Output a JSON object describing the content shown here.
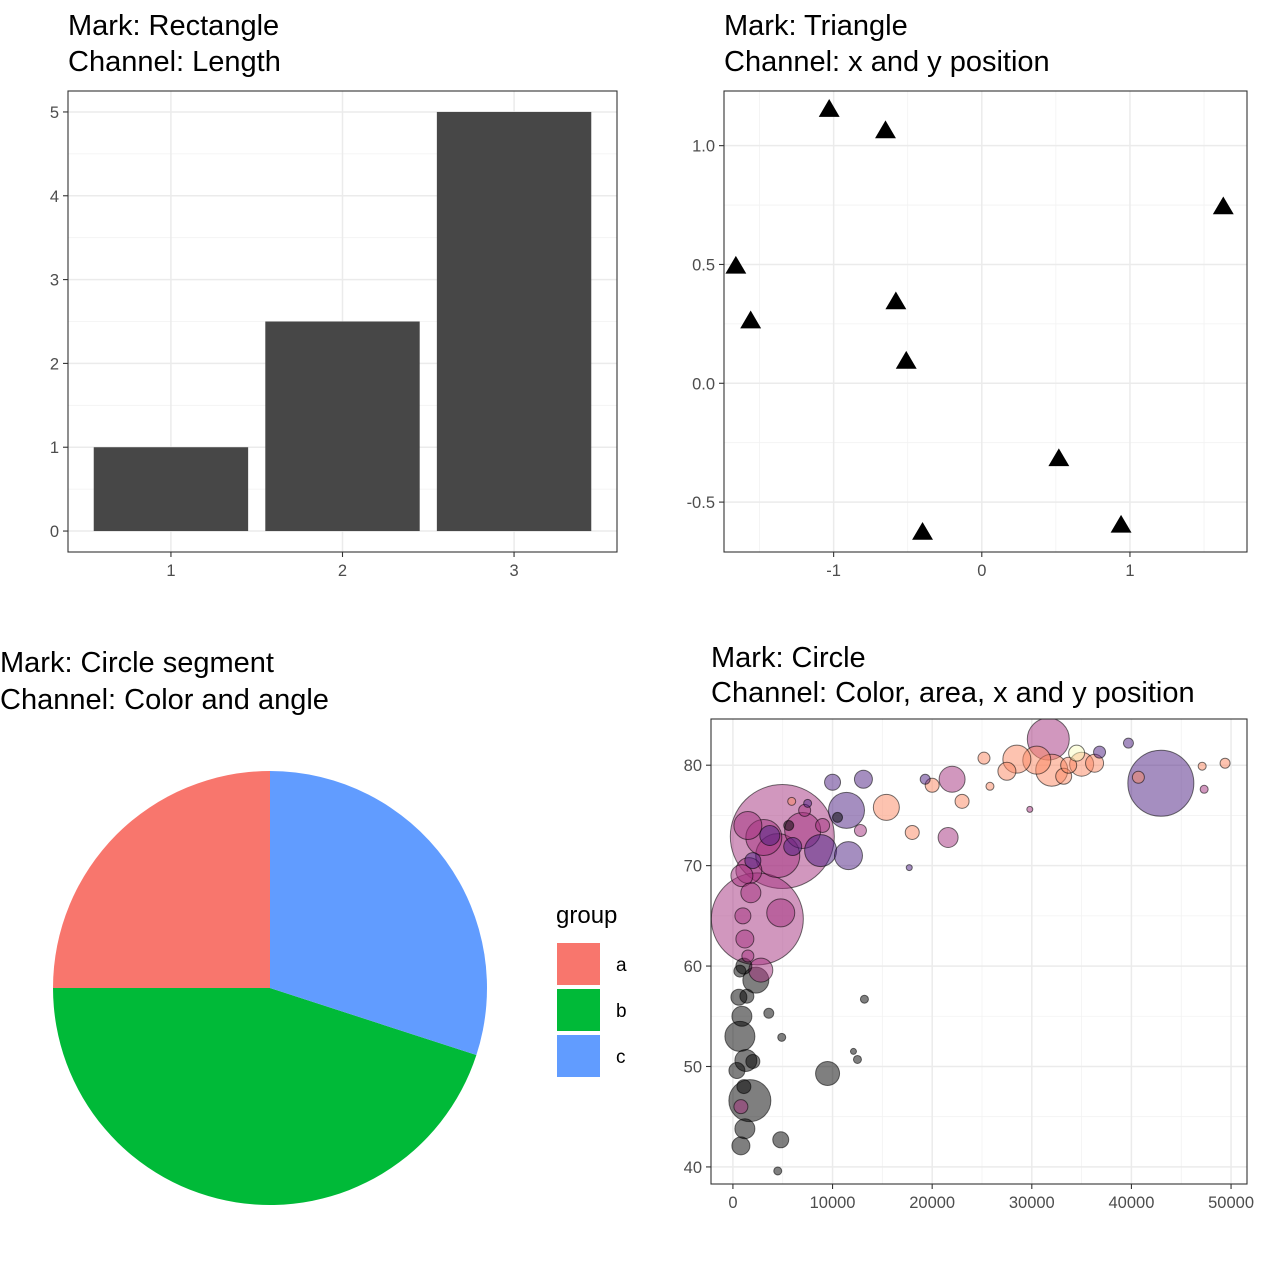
{
  "chart_data": [
    {
      "type": "bar",
      "title_line1": "Mark: Rectangle",
      "title_line2": "Channel: Length",
      "categories": [
        "1",
        "2",
        "3"
      ],
      "values": [
        1,
        2.5,
        5
      ],
      "ylim": [
        0,
        5.25
      ],
      "yticks": [
        "0",
        "1",
        "2",
        "3",
        "4",
        "5"
      ],
      "grid": true,
      "bar_color": "#474747"
    },
    {
      "type": "scatter",
      "title_line1": "Mark: Triangle",
      "title_line2": "Channel: x and y position",
      "marker": "triangle",
      "x": [
        -1.03,
        -0.65,
        1.63,
        -1.66,
        -0.58,
        -1.56,
        -0.51,
        0.52,
        -0.4,
        0.94
      ],
      "y": [
        1.15,
        1.06,
        0.74,
        0.49,
        0.34,
        0.26,
        0.09,
        -0.32,
        -0.63,
        -0.6
      ],
      "xlim": [
        -1.74,
        1.79
      ],
      "ylim": [
        -0.71,
        1.23
      ],
      "xticks": [
        "-1",
        "0",
        "1"
      ],
      "yticks": [
        "-0.5",
        "0.0",
        "0.5",
        "1.0"
      ],
      "grid": true
    },
    {
      "type": "pie",
      "title_line1": "Mark: Circle segment",
      "title_line2": "Channel: Color and angle",
      "legend_title": "group",
      "legend_position": "right",
      "slices": [
        {
          "label": "a",
          "value": 25,
          "color": "#F8766D"
        },
        {
          "label": "b",
          "value": 45,
          "color": "#00BA38"
        },
        {
          "label": "c",
          "value": 30,
          "color": "#619CFF"
        }
      ]
    },
    {
      "type": "scatter",
      "title_line1": "Mark: Circle",
      "title_line2": "Channel: Color, area, x and y position",
      "marker": "circle",
      "xlim": [
        -2200,
        51600
      ],
      "ylim": [
        38.3,
        84.6
      ],
      "xticks": [
        "0",
        "10000",
        "20000",
        "30000",
        "40000",
        "50000"
      ],
      "yticks": [
        "40",
        "50",
        "60",
        "70",
        "80"
      ],
      "grid": true,
      "opacity": 0.5,
      "points": [
        {
          "x": 4959,
          "y": 72.9,
          "r": 52,
          "c": "#A3307E"
        },
        {
          "x": 2452,
          "y": 64.7,
          "r": 46,
          "c": "#A3307E"
        },
        {
          "x": 42952,
          "y": 78.2,
          "r": 33,
          "c": "#4B1E81"
        },
        {
          "x": 4500,
          "y": 71.0,
          "r": 22,
          "c": "#A3307E"
        },
        {
          "x": 31656,
          "y": 82.6,
          "r": 21,
          "c": "#A3307E"
        },
        {
          "x": 2800,
          "y": 59.6,
          "r": 12,
          "c": "#A3307E"
        },
        {
          "x": 1700,
          "y": 46.6,
          "r": 21,
          "c": "#000000"
        },
        {
          "x": 700,
          "y": 53.0,
          "r": 15,
          "c": "#000000"
        },
        {
          "x": 9500,
          "y": 49.3,
          "r": 12,
          "c": "#000000"
        },
        {
          "x": 2300,
          "y": 58.6,
          "r": 13,
          "c": "#000000"
        },
        {
          "x": 11400,
          "y": 75.5,
          "r": 18,
          "c": "#4B1E81"
        },
        {
          "x": 22000,
          "y": 78.6,
          "r": 13,
          "c": "#A3307E"
        },
        {
          "x": 32000,
          "y": 79.5,
          "r": 16,
          "c": "#FB8761"
        },
        {
          "x": 30500,
          "y": 80.5,
          "r": 14,
          "c": "#FB8761"
        },
        {
          "x": 28500,
          "y": 80.6,
          "r": 14,
          "c": "#FB8761"
        },
        {
          "x": 35000,
          "y": 80.1,
          "r": 12,
          "c": "#FB8761"
        },
        {
          "x": 11600,
          "y": 71.0,
          "r": 14,
          "c": "#4B1E81"
        },
        {
          "x": 8800,
          "y": 71.5,
          "r": 16,
          "c": "#4B1E81"
        },
        {
          "x": 7000,
          "y": 73.5,
          "r": 18,
          "c": "#A3307E"
        },
        {
          "x": 1500,
          "y": 74.0,
          "r": 14,
          "c": "#A3307E"
        },
        {
          "x": 3100,
          "y": 72.8,
          "r": 18,
          "c": "#A3307E"
        },
        {
          "x": 900,
          "y": 69.0,
          "r": 11,
          "c": "#A3307E"
        },
        {
          "x": 15400,
          "y": 75.8,
          "r": 13,
          "c": "#FB8761"
        },
        {
          "x": 4800,
          "y": 65.3,
          "r": 14,
          "c": "#A3307E"
        },
        {
          "x": 1600,
          "y": 69.5,
          "r": 13,
          "c": "#A3307E"
        },
        {
          "x": 21600,
          "y": 72.8,
          "r": 10,
          "c": "#A3307E"
        },
        {
          "x": 3700,
          "y": 73.0,
          "r": 10,
          "c": "#4B1E81"
        },
        {
          "x": 13100,
          "y": 78.6,
          "r": 9,
          "c": "#4B1E81"
        },
        {
          "x": 1200,
          "y": 43.8,
          "r": 10,
          "c": "#000000"
        },
        {
          "x": 900,
          "y": 55.0,
          "r": 10,
          "c": "#000000"
        },
        {
          "x": 1300,
          "y": 50.6,
          "r": 11,
          "c": "#000000"
        },
        {
          "x": 4800,
          "y": 42.7,
          "r": 8,
          "c": "#000000"
        },
        {
          "x": 800,
          "y": 42.1,
          "r": 9,
          "c": "#000000"
        },
        {
          "x": 400,
          "y": 49.6,
          "r": 8,
          "c": "#000000"
        },
        {
          "x": 600,
          "y": 56.9,
          "r": 8,
          "c": "#000000"
        },
        {
          "x": 1200,
          "y": 62.7,
          "r": 9,
          "c": "#A3307E"
        },
        {
          "x": 1800,
          "y": 67.3,
          "r": 10,
          "c": "#A3307E"
        },
        {
          "x": 36300,
          "y": 80.2,
          "r": 9,
          "c": "#FB8761"
        },
        {
          "x": 27500,
          "y": 79.4,
          "r": 9,
          "c": "#FB8761"
        },
        {
          "x": 33200,
          "y": 78.9,
          "r": 8,
          "c": "#FB8761"
        },
        {
          "x": 33700,
          "y": 80.0,
          "r": 8,
          "c": "#FB8761"
        },
        {
          "x": 34500,
          "y": 81.2,
          "r": 8,
          "c": "#FCFDBF"
        },
        {
          "x": 36800,
          "y": 81.3,
          "r": 6,
          "c": "#4B1E81"
        },
        {
          "x": 40700,
          "y": 78.8,
          "r": 6,
          "c": "#FB8761"
        },
        {
          "x": 18000,
          "y": 73.3,
          "r": 7,
          "c": "#FB8761"
        },
        {
          "x": 20000,
          "y": 78.0,
          "r": 7,
          "c": "#FB8761"
        },
        {
          "x": 23000,
          "y": 76.4,
          "r": 7,
          "c": "#FB8761"
        },
        {
          "x": 39700,
          "y": 82.2,
          "r": 5,
          "c": "#4B1E81"
        },
        {
          "x": 49400,
          "y": 80.2,
          "r": 5,
          "c": "#FB8761"
        },
        {
          "x": 47100,
          "y": 79.9,
          "r": 4,
          "c": "#FB8761"
        },
        {
          "x": 47300,
          "y": 77.6,
          "r": 4,
          "c": "#A3307E"
        },
        {
          "x": 25200,
          "y": 80.7,
          "r": 6,
          "c": "#FB8761"
        },
        {
          "x": 19300,
          "y": 78.6,
          "r": 5,
          "c": "#4B1E81"
        },
        {
          "x": 5900,
          "y": 76.4,
          "r": 4,
          "c": "#FB8761"
        },
        {
          "x": 7500,
          "y": 76.2,
          "r": 4,
          "c": "#4B1E81"
        },
        {
          "x": 13200,
          "y": 56.7,
          "r": 4,
          "c": "#000000"
        },
        {
          "x": 12100,
          "y": 51.5,
          "r": 3,
          "c": "#000000"
        },
        {
          "x": 12500,
          "y": 50.7,
          "r": 4,
          "c": "#000000"
        },
        {
          "x": 4900,
          "y": 52.9,
          "r": 4,
          "c": "#000000"
        },
        {
          "x": 3600,
          "y": 55.3,
          "r": 5,
          "c": "#000000"
        },
        {
          "x": 4500,
          "y": 39.6,
          "r": 4,
          "c": "#000000"
        },
        {
          "x": 17700,
          "y": 69.8,
          "r": 3,
          "c": "#4B1E81"
        },
        {
          "x": 29800,
          "y": 75.6,
          "r": 3,
          "c": "#A3307E"
        },
        {
          "x": 25800,
          "y": 77.9,
          "r": 4,
          "c": "#FB8761"
        },
        {
          "x": 10000,
          "y": 78.3,
          "r": 8,
          "c": "#4B1E81"
        },
        {
          "x": 6000,
          "y": 71.9,
          "r": 9,
          "c": "#4B1E81"
        },
        {
          "x": 2000,
          "y": 70.5,
          "r": 8,
          "c": "#4B1E81"
        },
        {
          "x": 1000,
          "y": 65.0,
          "r": 8,
          "c": "#A3307E"
        },
        {
          "x": 1100,
          "y": 60.0,
          "r": 8,
          "c": "#000000"
        },
        {
          "x": 1400,
          "y": 57.0,
          "r": 7,
          "c": "#000000"
        },
        {
          "x": 800,
          "y": 46.0,
          "r": 7,
          "c": "#A3307E"
        },
        {
          "x": 1100,
          "y": 48.0,
          "r": 7,
          "c": "#000000"
        },
        {
          "x": 2000,
          "y": 50.5,
          "r": 7,
          "c": "#000000"
        },
        {
          "x": 700,
          "y": 59.5,
          "r": 6,
          "c": "#000000"
        },
        {
          "x": 1500,
          "y": 61.0,
          "r": 6,
          "c": "#A3307E"
        },
        {
          "x": 9000,
          "y": 74.0,
          "r": 7,
          "c": "#A3307E"
        },
        {
          "x": 12800,
          "y": 73.5,
          "r": 6,
          "c": "#A3307E"
        },
        {
          "x": 10500,
          "y": 74.8,
          "r": 5,
          "c": "#000000"
        },
        {
          "x": 7200,
          "y": 75.5,
          "r": 6,
          "c": "#A3307E"
        },
        {
          "x": 5600,
          "y": 74.0,
          "r": 5,
          "c": "#000000"
        }
      ]
    }
  ]
}
